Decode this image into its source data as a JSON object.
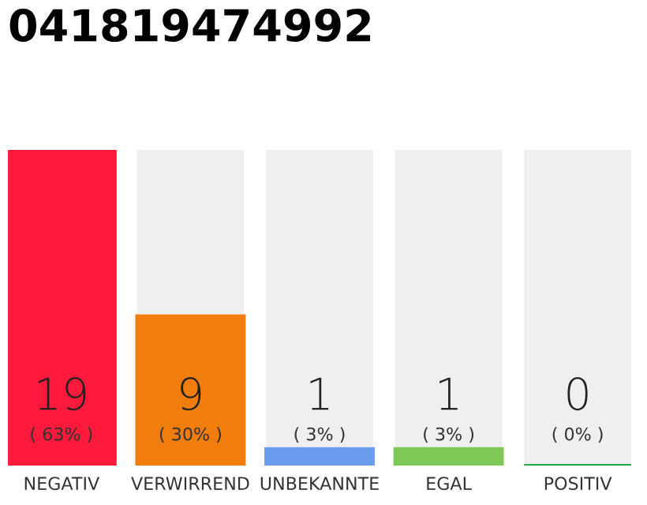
{
  "chart_data": {
    "type": "bar",
    "title": "041819474992",
    "categories": [
      "NEGATIV",
      "VERWIRREND",
      "UNBEKANNTE",
      "EGAL",
      "POSITIV"
    ],
    "values": [
      19,
      9,
      1,
      1,
      0
    ],
    "colors": [
      "#ff1a3c",
      "#f07d0c",
      "#6a9cec",
      "#7ec857",
      "#22a845"
    ],
    "relative": false,
    "data_labels": true,
    "annotations": [
      "( 63% )",
      "( 30% )",
      "( 3% )",
      "( 3% )",
      "( 0% )"
    ],
    "bands": [
      {
        "axis": "y",
        "from": 0,
        "to": 19,
        "color": "#efefef"
      }
    ],
    "grid": false,
    "legend": false
  }
}
